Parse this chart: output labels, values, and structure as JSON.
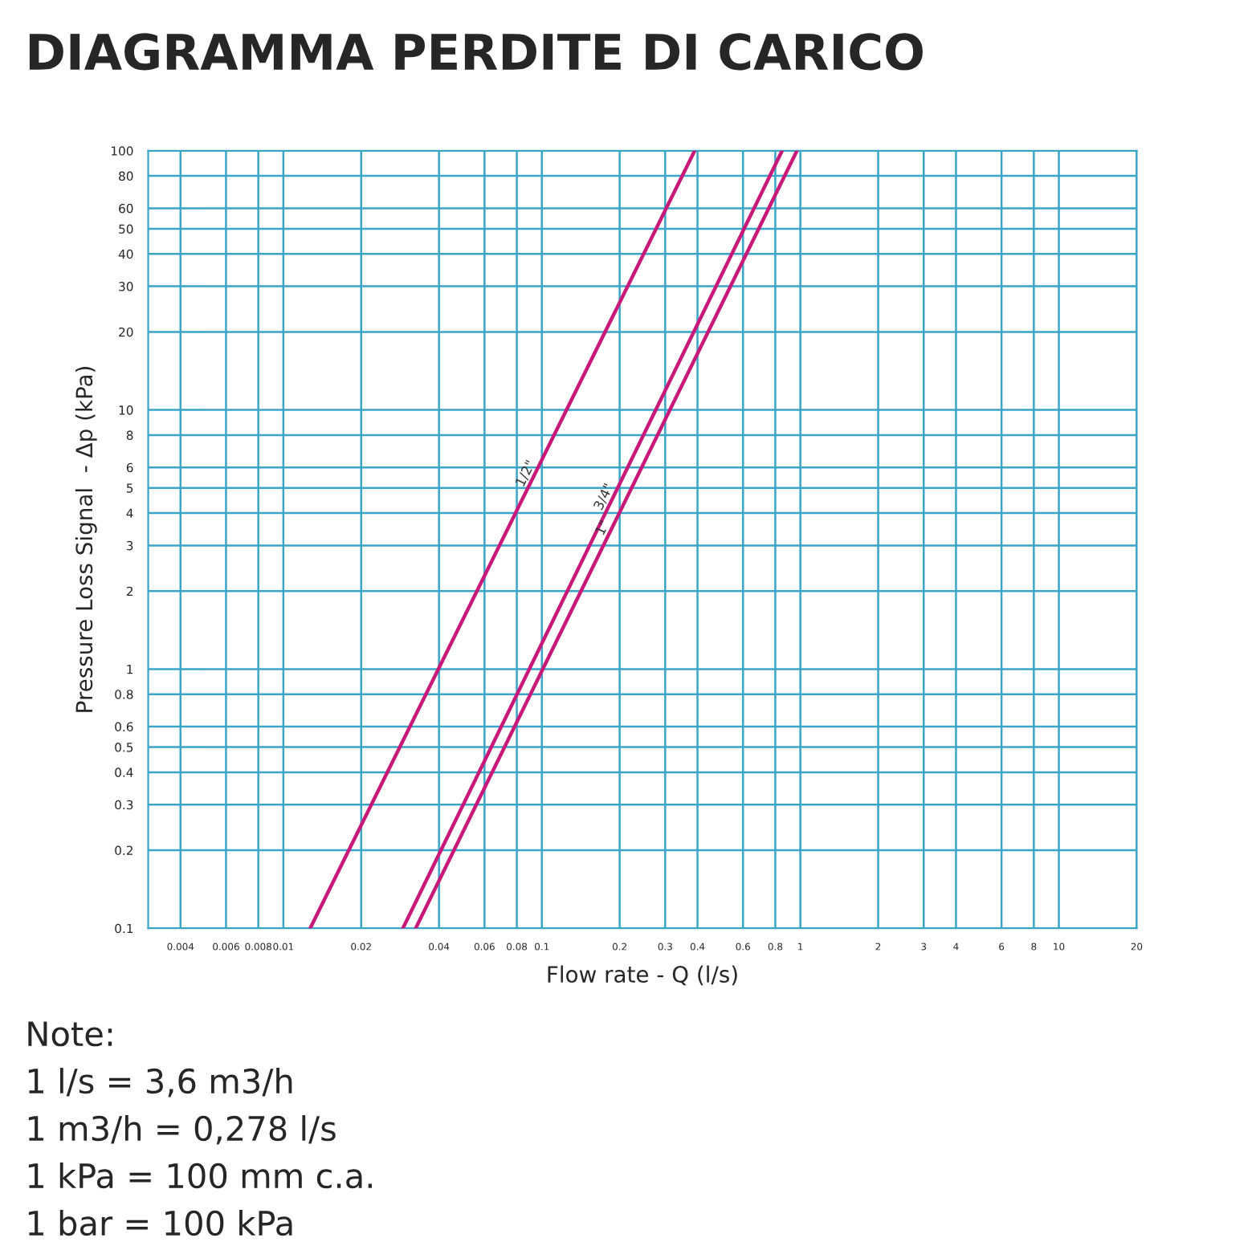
{
  "chart_data": {
    "type": "line",
    "title": "DIAGRAMMA PERDITE DI CARICO",
    "xlabel": "Flow rate - Q (l/s)",
    "ylabel": "Pressure Loss Signal  - Δp (kPa)",
    "series": [
      {
        "name": "1/2\"",
        "color": "#c8197a",
        "x": [
          0.0127,
          0.39
        ],
        "values": [
          0.1,
          100
        ]
      },
      {
        "name": "3/4\"",
        "color": "#c8197a",
        "x": [
          0.029,
          0.85
        ],
        "values": [
          0.1,
          100
        ]
      },
      {
        "name": "1\"",
        "color": "#c8197a",
        "x": [
          0.0325,
          0.97
        ],
        "values": [
          0.1,
          100
        ]
      }
    ],
    "log": "xy",
    "xlim": [
      0.003,
      20
    ],
    "ylim": [
      0.1,
      100
    ],
    "xticks": [
      0.004,
      0.006,
      0.008,
      0.01,
      0.02,
      0.04,
      0.06,
      0.08,
      0.1,
      0.2,
      0.3,
      0.4,
      0.6,
      0.8,
      1,
      2,
      3,
      4,
      6,
      8,
      10,
      20
    ],
    "yticks": [
      0.1,
      0.2,
      0.3,
      0.4,
      0.5,
      0.6,
      0.8,
      1,
      2,
      3,
      4,
      5,
      6,
      8,
      10,
      20,
      30,
      40,
      50,
      60,
      80,
      100
    ],
    "grid": true,
    "marker": "none",
    "line_style": "solid",
    "legend": false,
    "annotations": [
      "Note:",
      "1 l/s = 3,6 m3/h",
      "1 m3/h = 0,278 l/s",
      "1 kPa = 100 mm c.a.",
      "1 bar = 100 kPa"
    ]
  }
}
